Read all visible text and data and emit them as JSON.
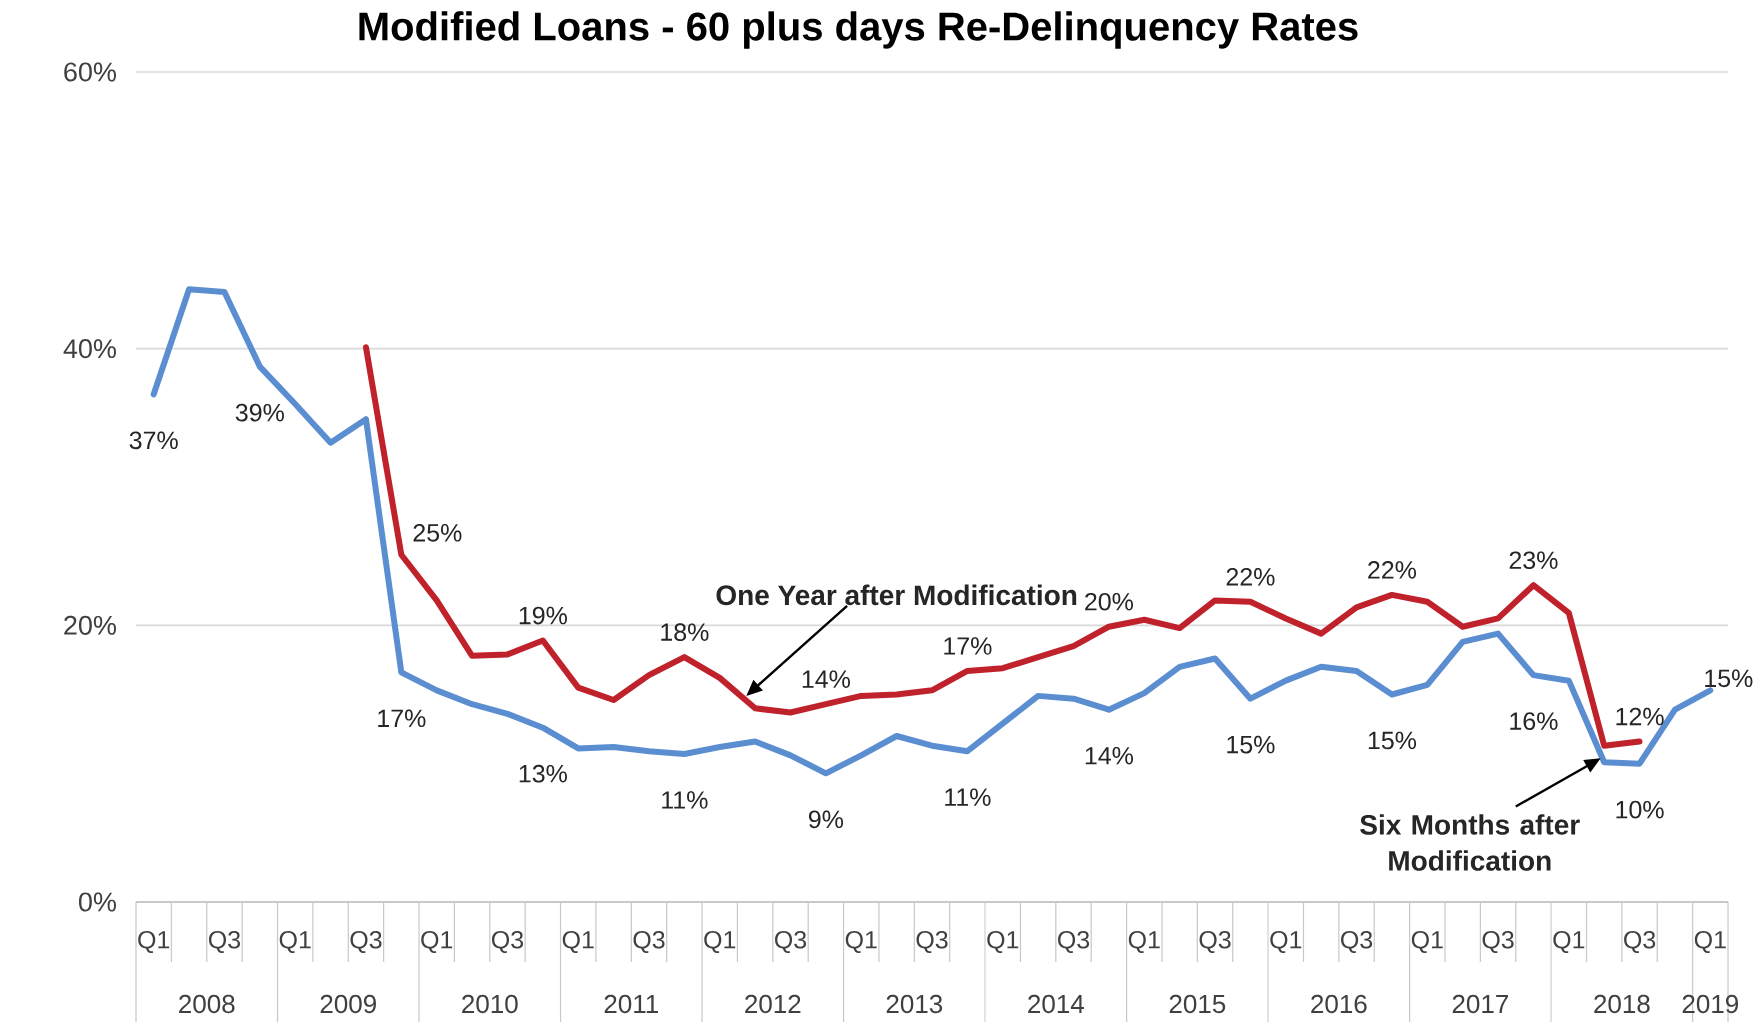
{
  "chart_data": {
    "type": "line",
    "title": "Modified Loans - 60 plus days Re-Delinquency Rates",
    "categories": [
      "Q1",
      null,
      "Q3",
      null,
      "Q1",
      null,
      "Q3",
      null,
      "Q1",
      null,
      "Q3",
      null,
      "Q1",
      null,
      "Q3",
      null,
      "Q1",
      null,
      "Q3",
      null,
      "Q1",
      null,
      "Q3",
      null,
      "Q1",
      null,
      "Q3",
      null,
      "Q1",
      null,
      "Q3",
      null,
      "Q1",
      null,
      "Q3",
      null,
      "Q1",
      null,
      "Q3",
      null,
      "Q1",
      null,
      "Q3",
      null,
      "Q1"
    ],
    "series": [
      {
        "name": "Six Months after Modification",
        "color": "#5b8ed1",
        "values": [
          36.7,
          44.3,
          44.1,
          38.7,
          36.0,
          33.2,
          34.9,
          16.6,
          15.3,
          14.3,
          13.6,
          12.6,
          11.1,
          11.2,
          10.9,
          10.7,
          11.2,
          11.6,
          10.6,
          9.3,
          10.6,
          12.0,
          11.3,
          10.9,
          12.9,
          14.9,
          14.7,
          13.9,
          15.1,
          17.0,
          17.6,
          14.7,
          16.0,
          17.0,
          16.7,
          15.0,
          15.7,
          18.8,
          19.4,
          16.4,
          16.0,
          10.1,
          10.0,
          13.9,
          15.3
        ],
        "value_labels": [
          "37%",
          null,
          null,
          "39%",
          null,
          null,
          null,
          "17%",
          null,
          null,
          null,
          "13%",
          null,
          null,
          null,
          "11%",
          null,
          null,
          null,
          "9%",
          null,
          null,
          null,
          "11%",
          null,
          null,
          null,
          "14%",
          null,
          null,
          null,
          "15%",
          null,
          null,
          null,
          "15%",
          null,
          null,
          null,
          "16%",
          null,
          null,
          "10%",
          null,
          "15%"
        ]
      },
      {
        "name": "One Year after Modification",
        "color": "#c0222c",
        "values": [
          null,
          null,
          null,
          null,
          null,
          null,
          40.1,
          25.1,
          21.8,
          17.8,
          17.9,
          18.9,
          15.5,
          14.6,
          16.4,
          17.7,
          16.2,
          14.0,
          13.7,
          14.3,
          14.9,
          15.0,
          15.3,
          16.7,
          16.9,
          17.7,
          18.5,
          19.9,
          20.4,
          19.8,
          21.8,
          21.7,
          20.5,
          19.4,
          21.3,
          22.2,
          21.7,
          19.9,
          20.5,
          22.9,
          20.9,
          11.3,
          11.6,
          null,
          null
        ],
        "value_labels": [
          null,
          null,
          null,
          null,
          null,
          null,
          null,
          "25%",
          null,
          null,
          null,
          "19%",
          null,
          null,
          null,
          "18%",
          null,
          null,
          null,
          "14%",
          null,
          null,
          null,
          "17%",
          null,
          null,
          null,
          "20%",
          null,
          null,
          null,
          "22%",
          null,
          null,
          null,
          "22%",
          null,
          null,
          null,
          "23%",
          null,
          null,
          "12%",
          null,
          null
        ]
      }
    ],
    "ylim": [
      0,
      60
    ],
    "yticks": [
      {
        "value": 0,
        "label": "0%"
      },
      {
        "value": 20,
        "label": "20%"
      },
      {
        "value": 40,
        "label": "40%"
      },
      {
        "value": 60,
        "label": "60%"
      }
    ],
    "grid": "y",
    "marker": "none",
    "line_style": "solid",
    "annotations": [
      "2008",
      "2009",
      "2010",
      "2011",
      "2012",
      "2013",
      "2014",
      "2015",
      "2016",
      "2017",
      "2018",
      "2019"
    ]
  }
}
